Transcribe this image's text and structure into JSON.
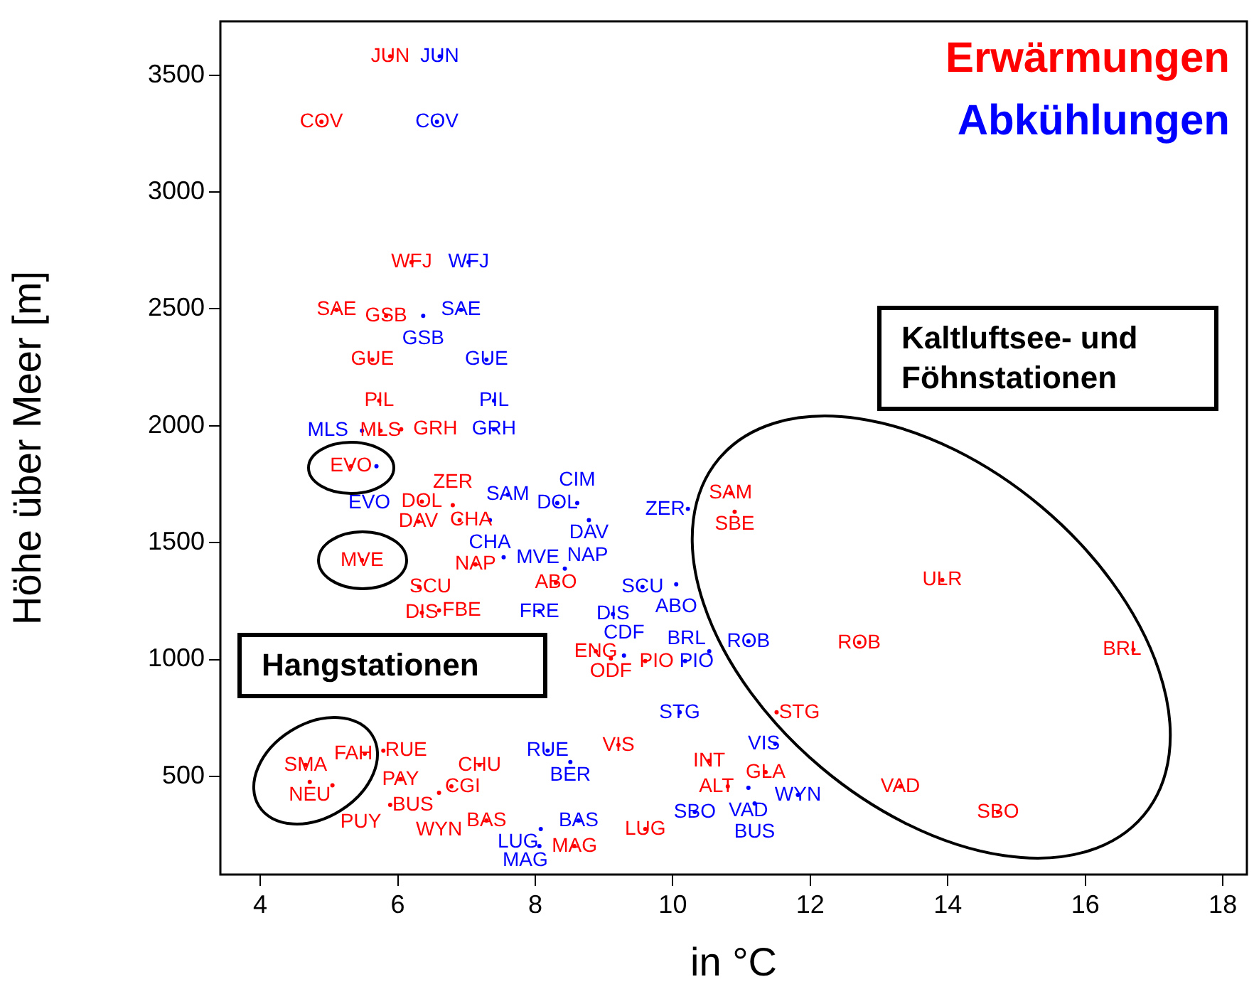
{
  "chart_data": {
    "type": "scatter",
    "xlabel": "in °C",
    "ylabel": "Höhe über Meer [m]",
    "xlim": [
      3.42,
      18.35
    ],
    "ylim": [
      80,
      3730
    ],
    "xticks": [
      4,
      6,
      8,
      10,
      12,
      14,
      16,
      18
    ],
    "yticks": [
      500,
      1000,
      1500,
      2000,
      2500,
      3000,
      3500
    ],
    "grid": false,
    "annotations": [
      "Hangstationen",
      "Kaltluftsee- und Föhnstationen"
    ],
    "series": [
      {
        "name": "Erwärmungen",
        "color": "#ff0000",
        "x": [
          5.89,
          4.89,
          6.2,
          5.11,
          5.83,
          5.63,
          5.73,
          5.75,
          6.05,
          5.32,
          5.48,
          6.31,
          6.35,
          6.6,
          6.35,
          6.8,
          6.3,
          6.9,
          7.13,
          8.3,
          8.88,
          9.1,
          9.6,
          10.84,
          10.9,
          13.92,
          12.71,
          16.7,
          11.51,
          13.31,
          14.73,
          9.6,
          8.57,
          7.29,
          9.21,
          10.53,
          11.35,
          10.8,
          7.19,
          4.66,
          5.52,
          5.79,
          4.72,
          5.05,
          5.89,
          6.04,
          6.78,
          6.6
        ],
        "values": [
          3580,
          3300,
          2700,
          2496,
          2470,
          2283,
          2107,
          1979,
          1985,
          1827,
          1425,
          1310,
          1200,
          1210,
          1675,
          1660,
          1590,
          1596,
          1407,
          1328,
          1035,
          1005,
          993,
          1711,
          1632,
          1340,
          1072,
          1042,
          774,
          457,
          348,
          275,
          202,
          311,
          634,
          567,
          518,
          457,
          549,
          549,
          597,
          610,
          476,
          462,
          378,
          488,
          457,
          430
        ],
        "value_labels": [
          "JUN",
          "COV",
          "WFJ",
          "SAE",
          "GSB",
          "GUE",
          "PIL",
          "MLS",
          "GRH",
          "EVO",
          "MVE",
          "SCU",
          "DIS",
          "FBE",
          "DOL",
          "ZER",
          "DAV",
          "CHA",
          "NAP",
          "ABO",
          "ENG",
          "ODF",
          "PIO",
          "SAM",
          "SBE",
          "ULR",
          "ROB",
          "BRL",
          "STG",
          "VAD",
          "SBO",
          "LUG",
          "MAG",
          "BAS",
          "VIS",
          "INT",
          "GLA",
          "ALT",
          "CHU",
          "SMA",
          "FAH",
          "RUE",
          "NEU",
          "PUY",
          "BUS",
          "PAY",
          "CGI",
          "WYN"
        ]
      },
      {
        "name": "Abkühlungen",
        "color": "#0000ff",
        "x": [
          6.61,
          6.57,
          7.03,
          6.92,
          6.37,
          7.29,
          7.4,
          7.4,
          5.48,
          5.69,
          7.6,
          8.32,
          8.61,
          8.78,
          7.34,
          10.22,
          7.54,
          8.43,
          9.56,
          10.05,
          8.06,
          9.13,
          9.29,
          10.18,
          10.53,
          11.1,
          10.1,
          11.49,
          11.1,
          11.82,
          11.19,
          10.32,
          8.18,
          8.51,
          8.63,
          8.08,
          8.06
        ],
        "values": [
          3580,
          3300,
          2700,
          2496,
          2470,
          2283,
          2107,
          1985,
          1979,
          1827,
          1705,
          1669,
          1669,
          1596,
          1596,
          1644,
          1437,
          1389,
          1310,
          1322,
          1206,
          1194,
          1017,
          993,
          1035,
          1078,
          774,
          640,
          451,
          421,
          384,
          348,
          610,
          561,
          311,
          275,
          202
        ],
        "value_labels": [
          "JUN",
          "COV",
          "WFJ",
          "SAE",
          "GSB",
          "GUE",
          "PIL",
          "GRH",
          "MLS",
          "EVO",
          "SAM",
          "DOL",
          "CIM",
          "DAV",
          "CHA",
          "ZER",
          "MVE",
          "NAP",
          "SCU",
          "ABO",
          "FRE",
          "DIS",
          "CDF",
          "PIO",
          "BRL",
          "ROB",
          "STG",
          "VIS",
          "VAD",
          "WYN",
          "BUS",
          "SBO",
          "RUE",
          "BER",
          "BAS",
          "LUG",
          "MAG"
        ]
      }
    ]
  }
}
